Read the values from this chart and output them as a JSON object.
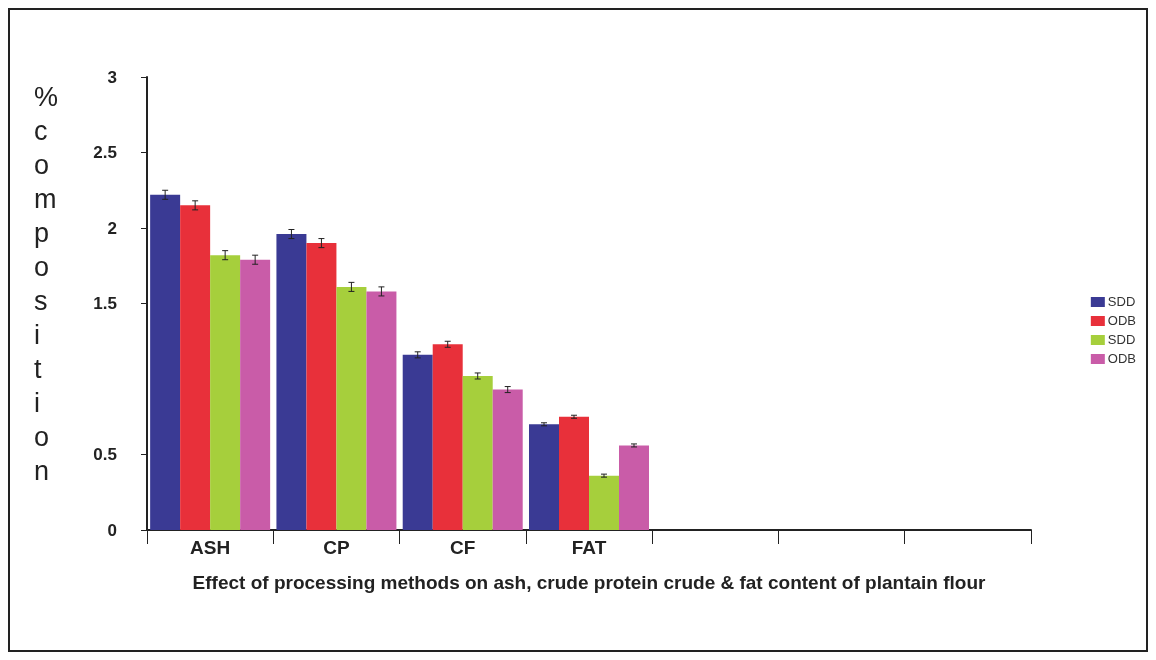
{
  "chart_data": {
    "type": "bar",
    "xlabel": "Effect of processing methods on ash, crude protein crude & fat content of plantain flour",
    "ylabel": "% composition",
    "categories": [
      "ASH",
      "CP",
      "CF",
      "FAT",
      null,
      null,
      null
    ],
    "series": [
      {
        "name": "SDD",
        "color": "#3a3a94",
        "values": [
          2.22,
          1.96,
          1.16,
          0.7,
          null,
          null,
          null
        ],
        "errors": [
          0.03,
          0.03,
          0.02,
          0.01,
          null,
          null,
          null
        ]
      },
      {
        "name": "ODB",
        "color": "#e8303a",
        "values": [
          2.15,
          1.9,
          1.23,
          0.75,
          null,
          null,
          null
        ],
        "errors": [
          0.03,
          0.03,
          0.02,
          0.01,
          null,
          null,
          null
        ]
      },
      {
        "name": "SDD",
        "color": "#a6cf3c",
        "values": [
          1.82,
          1.61,
          1.02,
          0.36,
          null,
          null,
          null
        ],
        "errors": [
          0.03,
          0.03,
          0.02,
          0.01,
          null,
          null,
          null
        ]
      },
      {
        "name": "ODB",
        "color": "#c95ca8",
        "values": [
          1.79,
          1.58,
          0.93,
          0.56,
          null,
          null,
          null
        ],
        "errors": [
          0.03,
          0.03,
          0.02,
          0.01,
          null,
          null,
          null
        ]
      }
    ],
    "ylim": [
      0,
      3
    ],
    "yticks": [
      0,
      0.5,
      1.5,
      2,
      2.5,
      3
    ],
    "grid": false,
    "legend": "right"
  }
}
